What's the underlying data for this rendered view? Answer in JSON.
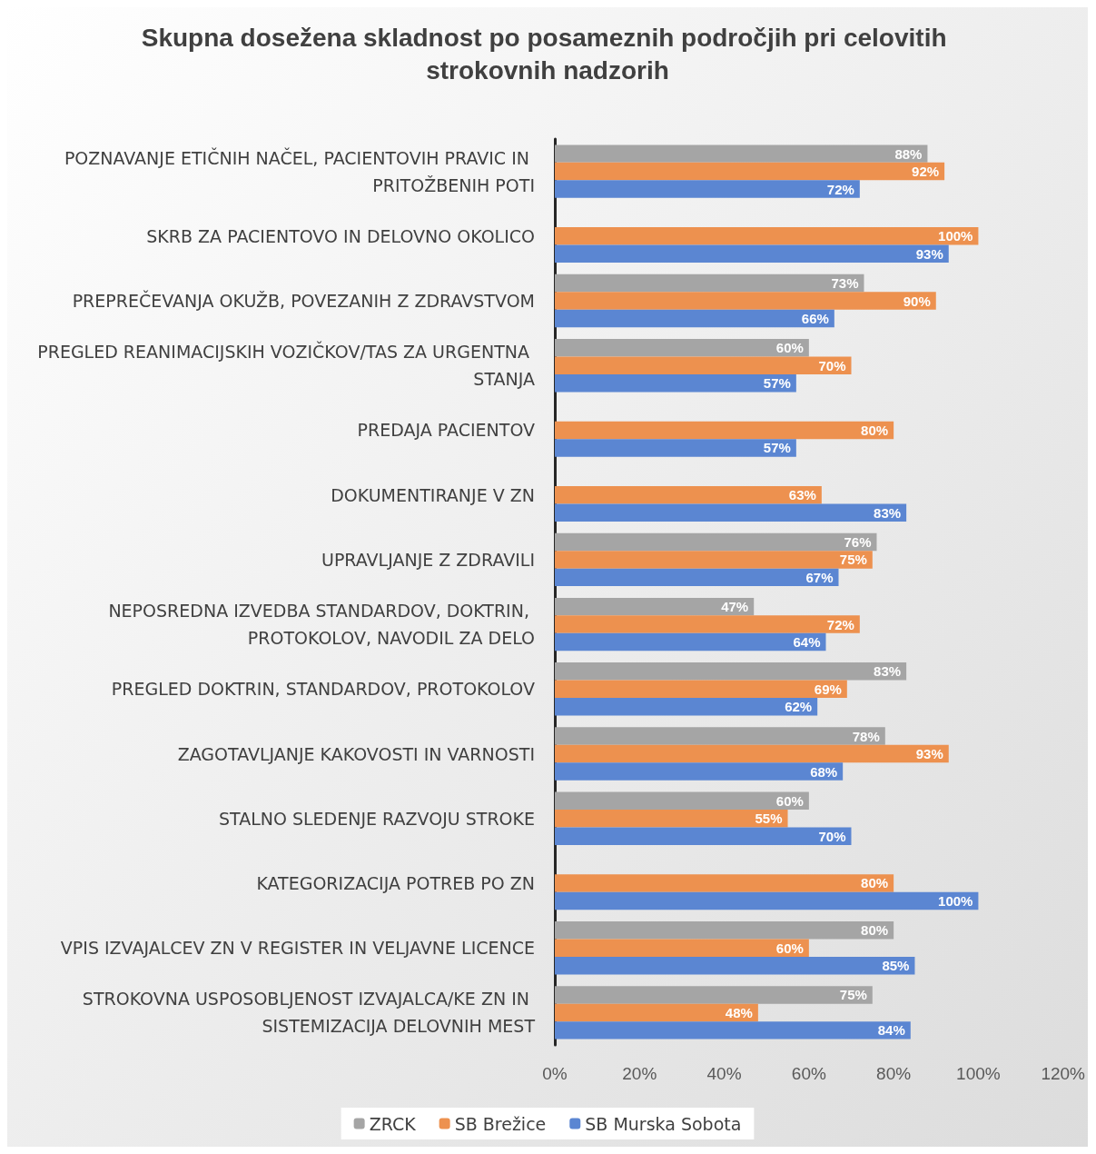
{
  "chart_data": {
    "type": "bar",
    "orientation": "horizontal",
    "title": "Skupna dosežena skladnost po posameznih področjih pri celovitih strokovnih nadzorih",
    "categories": [
      "POZNAVANJE ETIČNIH NAČEL, PACIENTOVIH PRAVIC IN PRITOŽBENIH POTI",
      "SKRB ZA PACIENTOVO IN DELOVNO OKOLICO",
      "PREPREČEVANJA OKUŽB, POVEZANIH Z ZDRAVSTVOM",
      "PREGLED REANIMACIJSKIH VOZIČKOV/TAS ZA URGENTNA STANJA",
      "PREDAJA PACIENTOV",
      "DOKUMENTIRANJE V ZN",
      "UPRAVLJANJE Z ZDRAVILI",
      "NEPOSREDNA IZVEDBA STANDARDOV, DOKTRIN, PROTOKOLOV, NAVODIL ZA DELO",
      "PREGLED DOKTRIN, STANDARDOV, PROTOKOLOV",
      "ZAGOTAVLJANJE KAKOVOSTI IN VARNOSTI",
      "STALNO SLEDENJE RAZVOJU STROKE",
      "KATEGORIZACIJA POTREB PO ZN",
      "VPIS IZVAJALCEV ZN V REGISTER IN VELJAVNE LICENCE",
      "STROKOVNA USPOSOBLJENOST IZVAJALCA/KE ZN IN SISTEMIZACIJA DELOVNIH MEST"
    ],
    "series": [
      {
        "name": "ZRCK",
        "color": "#a5a5a5",
        "values": [
          88,
          null,
          73,
          60,
          null,
          null,
          76,
          47,
          83,
          78,
          60,
          null,
          80,
          75
        ],
        "value_labels": [
          "88%",
          null,
          "73%",
          "60%",
          null,
          null,
          "76%",
          "47%",
          "83%",
          "78%",
          "60%",
          null,
          "80%",
          "75%"
        ]
      },
      {
        "name": "SB Brežice",
        "color": "#ed914f",
        "values": [
          92,
          100,
          90,
          70,
          80,
          63,
          75,
          72,
          69,
          93,
          55,
          80,
          60,
          48
        ],
        "value_labels": [
          "92%",
          "100%",
          "90%",
          "70%",
          "80%",
          "63%",
          "75%",
          "72%",
          "69%",
          "93%",
          "55%",
          "80%",
          "60%",
          "48%"
        ]
      },
      {
        "name": "SB Murska Sobota",
        "color": "#5b86d2",
        "values": [
          72,
          93,
          66,
          57,
          57,
          83,
          67,
          64,
          62,
          68,
          70,
          100,
          85,
          84
        ],
        "value_labels": [
          "72%",
          "93%",
          "66%",
          "57%",
          "57%",
          "83%",
          "67%",
          "64%",
          "62%",
          "68%",
          "70%",
          "100%",
          "85%",
          "84%"
        ]
      }
    ],
    "xlim": [
      0,
      120
    ],
    "xticks": [
      {
        "value": 0,
        "label": "0%"
      },
      {
        "value": 20,
        "label": "20%"
      },
      {
        "value": 40,
        "label": "40%"
      },
      {
        "value": 60,
        "label": "60%"
      },
      {
        "value": 80,
        "label": "80%"
      },
      {
        "value": 100,
        "label": "100%"
      },
      {
        "value": 120,
        "label": "120%"
      }
    ],
    "grid": false,
    "legend": "bottom"
  }
}
